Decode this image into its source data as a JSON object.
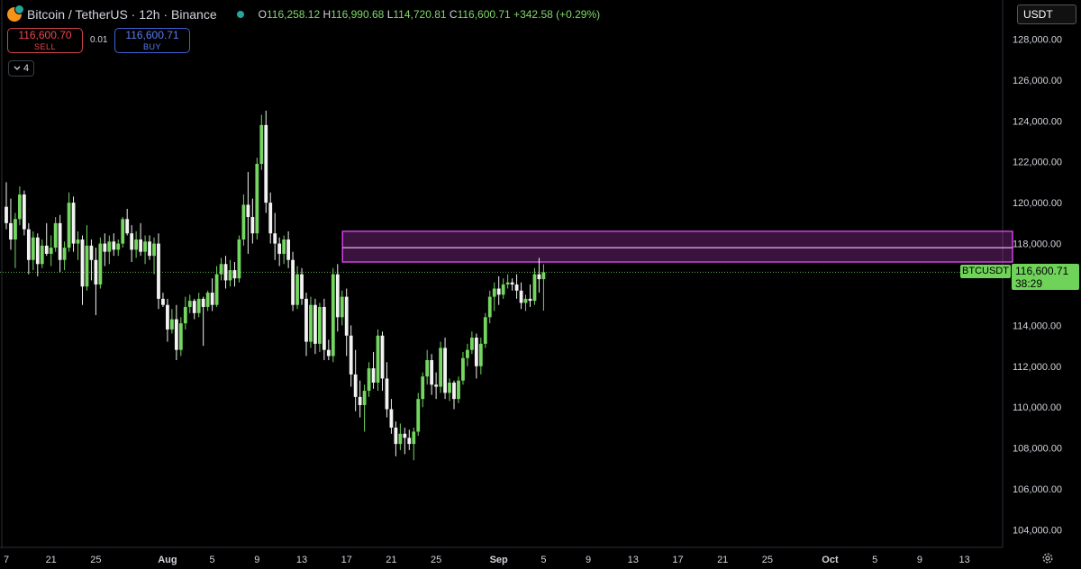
{
  "header": {
    "symbol_title": "Bitcoin / TetherUS · 12h · Binance",
    "open_label": "O",
    "open": "116,258.12",
    "high_label": "H",
    "high": "116,990.68",
    "low_label": "L",
    "low": "114,720.81",
    "close_label": "C",
    "close": "116,600.71",
    "change": "+342.58 (+0.29%)"
  },
  "trade": {
    "sell_price": "116,600.70",
    "sell_label": "SELL",
    "spread": "0.01",
    "buy_price": "116,600.71",
    "buy_label": "BUY"
  },
  "indicator_toggle": {
    "count": "4"
  },
  "currency_select": {
    "value": "USDT"
  },
  "last_price": {
    "symbol": "BTCUSDT",
    "price": "116,600.71",
    "countdown": "38:29"
  },
  "colors": {
    "up": "#74d660",
    "down": "#f2f2f2",
    "zone": "#d042e0",
    "axis_text": "#d1d4dc",
    "last_price": "#6fd35a"
  },
  "icons": {
    "settings": "gear-icon",
    "collapse": "chevron-down-icon"
  },
  "chart_data": {
    "type": "candlestick",
    "interval": "12h",
    "ylim": [
      103000,
      129000
    ],
    "y_ticks": [
      104000,
      106000,
      108000,
      110000,
      112000,
      114000,
      116000,
      118000,
      120000,
      122000,
      124000,
      126000,
      128000
    ],
    "y_tick_labels": [
      "104,000.00",
      "106,000.00",
      "108,000.00",
      "110,000.00",
      "112,000.00",
      "114,000.00",
      "116,000.00",
      "118,000.00",
      "120,000.00",
      "122,000.00",
      "124,000.00",
      "126,000.00",
      "128,000.00"
    ],
    "x_labels": [
      {
        "label": "7",
        "bar": 0
      },
      {
        "label": "21",
        "bar": 10
      },
      {
        "label": "25",
        "bar": 20
      },
      {
        "label": "Aug",
        "bar": 36,
        "bold": true
      },
      {
        "label": "5",
        "bar": 46
      },
      {
        "label": "9",
        "bar": 56
      },
      {
        "label": "13",
        "bar": 66
      },
      {
        "label": "17",
        "bar": 76
      },
      {
        "label": "21",
        "bar": 86
      },
      {
        "label": "25",
        "bar": 96
      },
      {
        "label": "Sep",
        "bar": 110,
        "bold": true
      },
      {
        "label": "5",
        "bar": 120
      },
      {
        "label": "9",
        "bar": 130
      },
      {
        "label": "13",
        "bar": 140
      },
      {
        "label": "17",
        "bar": 150
      },
      {
        "label": "21",
        "bar": 160
      },
      {
        "label": "25",
        "bar": 170
      },
      {
        "label": "Oct",
        "bar": 184,
        "bold": true
      },
      {
        "label": "5",
        "bar": 194
      },
      {
        "label": "9",
        "bar": 204
      },
      {
        "label": "13",
        "bar": 214
      }
    ],
    "zone": {
      "from_bar": 75,
      "to_bar": 220,
      "top": 118600,
      "mid": 117800,
      "bottom": 117100
    },
    "last_price_value": 116600.71,
    "candles": [
      [
        119800,
        121000,
        118700,
        119000
      ],
      [
        119000,
        120200,
        117700,
        118200
      ],
      [
        118200,
        119500,
        116800,
        119200
      ],
      [
        119200,
        120800,
        118900,
        120400
      ],
      [
        120400,
        120600,
        118400,
        118700
      ],
      [
        118700,
        119000,
        116500,
        117200
      ],
      [
        117200,
        118600,
        116700,
        118300
      ],
      [
        118300,
        118500,
        116400,
        117000
      ],
      [
        117000,
        118200,
        116800,
        117900
      ],
      [
        117900,
        119000,
        117400,
        117500
      ],
      [
        117500,
        118400,
        116900,
        117800
      ],
      [
        117800,
        119300,
        117600,
        119000
      ],
      [
        119000,
        119400,
        116600,
        117200
      ],
      [
        117200,
        118100,
        116700,
        117800
      ],
      [
        117800,
        120500,
        117600,
        120000
      ],
      [
        120000,
        120300,
        117600,
        118000
      ],
      [
        118000,
        118600,
        117200,
        118200
      ],
      [
        118200,
        118400,
        115000,
        115900
      ],
      [
        115900,
        118900,
        115700,
        117900
      ],
      [
        117900,
        118200,
        116200,
        117200
      ],
      [
        117200,
        117800,
        114500,
        116000
      ],
      [
        116000,
        118300,
        115800,
        118000
      ],
      [
        118000,
        118500,
        116900,
        117600
      ],
      [
        117600,
        118400,
        117000,
        118100
      ],
      [
        118100,
        118500,
        117400,
        117700
      ],
      [
        117700,
        118200,
        117400,
        118000
      ],
      [
        118000,
        119300,
        117800,
        119200
      ],
      [
        119200,
        119700,
        118400,
        118500
      ],
      [
        118500,
        118900,
        117100,
        117700
      ],
      [
        117700,
        118600,
        117300,
        118200
      ],
      [
        118200,
        119000,
        117400,
        117600
      ],
      [
        117600,
        118400,
        117000,
        118100
      ],
      [
        118100,
        118400,
        117200,
        117400
      ],
      [
        117400,
        118300,
        116500,
        118000
      ],
      [
        118000,
        118500,
        114800,
        115300
      ],
      [
        115300,
        115600,
        114900,
        115000
      ],
      [
        115000,
        115300,
        113200,
        113800
      ],
      [
        113800,
        114800,
        113600,
        114300
      ],
      [
        114300,
        115000,
        112300,
        112800
      ],
      [
        112800,
        114400,
        112500,
        114100
      ],
      [
        114100,
        115400,
        113800,
        114900
      ],
      [
        114900,
        115500,
        114600,
        115200
      ],
      [
        115200,
        115300,
        114300,
        114600
      ],
      [
        114600,
        115600,
        114400,
        115300
      ],
      [
        115300,
        115400,
        113000,
        114900
      ],
      [
        114900,
        115700,
        114700,
        115600
      ],
      [
        115600,
        116300,
        114700,
        115000
      ],
      [
        115000,
        116900,
        114900,
        116500
      ],
      [
        116500,
        117300,
        116200,
        117000
      ],
      [
        117000,
        117400,
        115800,
        116200
      ],
      [
        116200,
        117200,
        115900,
        116700
      ],
      [
        116700,
        117100,
        115900,
        116300
      ],
      [
        116300,
        118400,
        116100,
        118200
      ],
      [
        118200,
        120400,
        117900,
        119900
      ],
      [
        119900,
        121500,
        117500,
        119300
      ],
      [
        119300,
        120200,
        118000,
        118500
      ],
      [
        118500,
        122200,
        118200,
        121900
      ],
      [
        121900,
        124300,
        121600,
        123800
      ],
      [
        123800,
        124500,
        119500,
        120000
      ],
      [
        120000,
        120500,
        118000,
        118500
      ],
      [
        118500,
        119500,
        117200,
        118000
      ],
      [
        118000,
        118300,
        116900,
        117500
      ],
      [
        117500,
        118400,
        117000,
        118200
      ],
      [
        118200,
        118600,
        116800,
        117200
      ],
      [
        117200,
        117600,
        114700,
        115000
      ],
      [
        115000,
        116900,
        114800,
        116500
      ],
      [
        116500,
        116800,
        115000,
        115300
      ],
      [
        115300,
        115600,
        112500,
        113200
      ],
      [
        113200,
        115400,
        112900,
        115000
      ],
      [
        115000,
        115300,
        112600,
        113100
      ],
      [
        113100,
        115100,
        112700,
        114900
      ],
      [
        114900,
        115300,
        112300,
        112800
      ],
      [
        112800,
        113300,
        112300,
        112500
      ],
      [
        112500,
        116800,
        112200,
        116500
      ],
      [
        116500,
        117000,
        113700,
        114400
      ],
      [
        114400,
        115700,
        114000,
        115400
      ],
      [
        115400,
        115800,
        112500,
        113500
      ],
      [
        113500,
        114000,
        111000,
        111600
      ],
      [
        111600,
        112800,
        109800,
        110500
      ],
      [
        110500,
        111300,
        109500,
        110100
      ],
      [
        110100,
        111100,
        108800,
        110800
      ],
      [
        110800,
        112200,
        110500,
        111900
      ],
      [
        111900,
        112700,
        110900,
        111200
      ],
      [
        111200,
        113800,
        110800,
        113500
      ],
      [
        113500,
        113700,
        110800,
        111400
      ],
      [
        111400,
        112200,
        109500,
        109900
      ],
      [
        109900,
        110400,
        108700,
        109000
      ],
      [
        109000,
        109300,
        107600,
        108200
      ],
      [
        108200,
        109200,
        107900,
        108700
      ],
      [
        108700,
        109000,
        107700,
        108500
      ],
      [
        108500,
        108900,
        107900,
        108200
      ],
      [
        108200,
        109000,
        107400,
        108800
      ],
      [
        108800,
        110700,
        108600,
        110400
      ],
      [
        110400,
        111700,
        110000,
        111500
      ],
      [
        111500,
        112800,
        111100,
        112300
      ],
      [
        112300,
        112600,
        110600,
        111100
      ],
      [
        111100,
        111700,
        110400,
        111000
      ],
      [
        111000,
        113200,
        110700,
        112900
      ],
      [
        112900,
        113400,
        110400,
        110700
      ],
      [
        110700,
        111400,
        110300,
        111200
      ],
      [
        111200,
        111300,
        109900,
        110400
      ],
      [
        110400,
        111500,
        110200,
        111300
      ],
      [
        111300,
        112700,
        111100,
        112400
      ],
      [
        112400,
        113100,
        112000,
        112800
      ],
      [
        112800,
        113700,
        112600,
        113400
      ],
      [
        113400,
        113600,
        111400,
        112000
      ],
      [
        112000,
        113400,
        111600,
        113100
      ],
      [
        113100,
        114600,
        112900,
        114400
      ],
      [
        114400,
        115700,
        114100,
        115400
      ],
      [
        115400,
        116100,
        114700,
        115800
      ],
      [
        115800,
        116400,
        115000,
        115500
      ],
      [
        115500,
        116300,
        115300,
        116000
      ],
      [
        116000,
        116500,
        115800,
        116100
      ],
      [
        116100,
        116300,
        115700,
        116000
      ],
      [
        116000,
        116500,
        115300,
        115700
      ],
      [
        115700,
        116100,
        114800,
        115100
      ],
      [
        115100,
        115500,
        114700,
        115300
      ],
      [
        115300,
        116000,
        114900,
        115200
      ],
      [
        115200,
        116800,
        115000,
        116500
      ],
      [
        116500,
        117300,
        115600,
        116258.12
      ],
      [
        116258.12,
        116990.68,
        114720.81,
        116600.71
      ]
    ]
  }
}
